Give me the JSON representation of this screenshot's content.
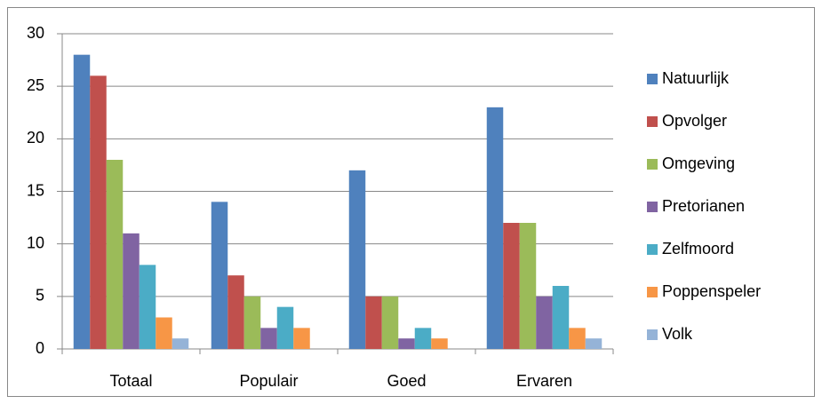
{
  "chart_data": {
    "type": "bar",
    "categories": [
      "Totaal",
      "Populair",
      "Goed",
      "Ervaren"
    ],
    "series": [
      {
        "name": "Natuurlijk",
        "color": "#4f81bd",
        "values": [
          28,
          14,
          17,
          23
        ]
      },
      {
        "name": "Opvolger",
        "color": "#c0504d",
        "values": [
          26,
          7,
          5,
          12
        ]
      },
      {
        "name": "Omgeving",
        "color": "#9bbb59",
        "values": [
          18,
          5,
          5,
          12
        ]
      },
      {
        "name": "Pretorianen",
        "color": "#8064a2",
        "values": [
          11,
          2,
          1,
          5
        ]
      },
      {
        "name": "Zelfmoord",
        "color": "#4bacc6",
        "values": [
          8,
          4,
          2,
          6
        ]
      },
      {
        "name": "Poppenspeler",
        "color": "#f79646",
        "values": [
          3,
          2,
          1,
          2
        ]
      },
      {
        "name": "Volk",
        "color": "#95b3d7",
        "values": [
          1,
          0,
          0,
          1
        ]
      }
    ],
    "ylim": [
      0,
      30
    ],
    "yticks": [
      0,
      5,
      10,
      15,
      20,
      25,
      30
    ],
    "grid": true,
    "legend": "right"
  }
}
